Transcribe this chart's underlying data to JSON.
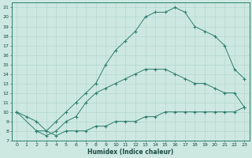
{
  "xlabel": "Humidex (Indice chaleur)",
  "background_color": "#cde8e0",
  "grid_color": "#aed4cc",
  "line_color": "#2d7d6e",
  "ylim": [
    7,
    21.5
  ],
  "xlim": [
    -0.5,
    23.5
  ],
  "yticks": [
    7,
    8,
    9,
    10,
    11,
    12,
    13,
    14,
    15,
    16,
    17,
    18,
    19,
    20,
    21
  ],
  "xticks": [
    0,
    1,
    2,
    3,
    4,
    5,
    6,
    7,
    8,
    9,
    10,
    11,
    12,
    13,
    14,
    15,
    16,
    17,
    18,
    19,
    20,
    21,
    22,
    23
  ],
  "lines": [
    {
      "x": [
        0,
        1,
        2,
        3,
        4,
        5,
        6,
        7,
        8,
        9,
        10,
        11,
        12,
        13,
        14,
        15,
        16,
        17,
        18,
        19,
        20,
        21,
        22,
        23
      ],
      "y": [
        10,
        9.5,
        9,
        8,
        7.5,
        8,
        8,
        8,
        8.5,
        8.5,
        9,
        9,
        9,
        9.5,
        9.5,
        10,
        10,
        10,
        10,
        10,
        10,
        10,
        10,
        10.5
      ]
    },
    {
      "x": [
        2,
        3,
        4,
        5,
        6,
        7,
        8,
        9,
        10,
        11,
        12,
        13,
        14,
        15,
        16,
        17,
        18,
        19,
        20,
        21,
        22,
        23
      ],
      "y": [
        8,
        7.5,
        8,
        9,
        9.5,
        11,
        12,
        12.5,
        13,
        13.5,
        14,
        14.5,
        14.5,
        14.5,
        14,
        13.5,
        13,
        13,
        12.5,
        12,
        12,
        10.5
      ]
    },
    {
      "x": [
        0,
        2,
        3,
        4,
        5,
        6,
        7,
        8,
        9,
        10,
        11,
        12,
        13,
        14,
        15,
        16,
        17,
        18,
        19,
        20,
        21,
        22,
        23
      ],
      "y": [
        10,
        8,
        8,
        9,
        10,
        11,
        12,
        13,
        15,
        16.5,
        17.5,
        18.5,
        20,
        20.5,
        20.5,
        21,
        20.5,
        19,
        18.5,
        18,
        17,
        14.5,
        13.5
      ]
    }
  ]
}
